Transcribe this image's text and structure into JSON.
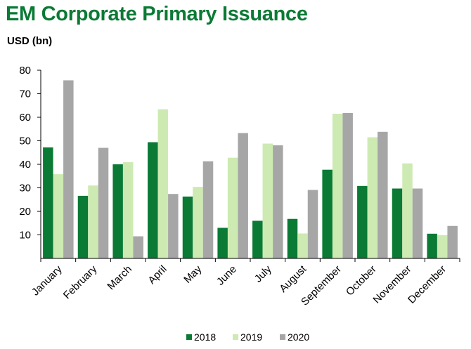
{
  "chart_data": {
    "type": "bar",
    "title": "EM Corporate Primary Issuance",
    "ylabel": "USD (bn)",
    "xlabel": "",
    "ylim": [
      0,
      80
    ],
    "yticks": [
      10,
      20,
      30,
      40,
      50,
      60,
      70,
      80
    ],
    "categories": [
      "January",
      "February",
      "March",
      "April",
      "May",
      "June",
      "July",
      "August",
      "September",
      "October",
      "November",
      "December"
    ],
    "series": [
      {
        "name": "2018",
        "color": "#0a7a35",
        "values": [
          47.2,
          26.6,
          40.0,
          49.4,
          26.3,
          13.0,
          16.0,
          16.8,
          37.7,
          30.8,
          29.7,
          10.5
        ]
      },
      {
        "name": "2019",
        "color": "#cdeab2",
        "values": [
          35.8,
          31.0,
          40.9,
          63.4,
          30.4,
          42.8,
          48.8,
          10.6,
          61.5,
          51.5,
          40.4,
          9.9
        ]
      },
      {
        "name": "2020",
        "color": "#a6a6a6",
        "values": [
          75.7,
          47.0,
          9.4,
          27.4,
          41.3,
          53.3,
          48.1,
          29.1,
          61.8,
          53.8,
          29.7,
          13.8
        ]
      }
    ],
    "grid": false,
    "legend": "bottom"
  }
}
